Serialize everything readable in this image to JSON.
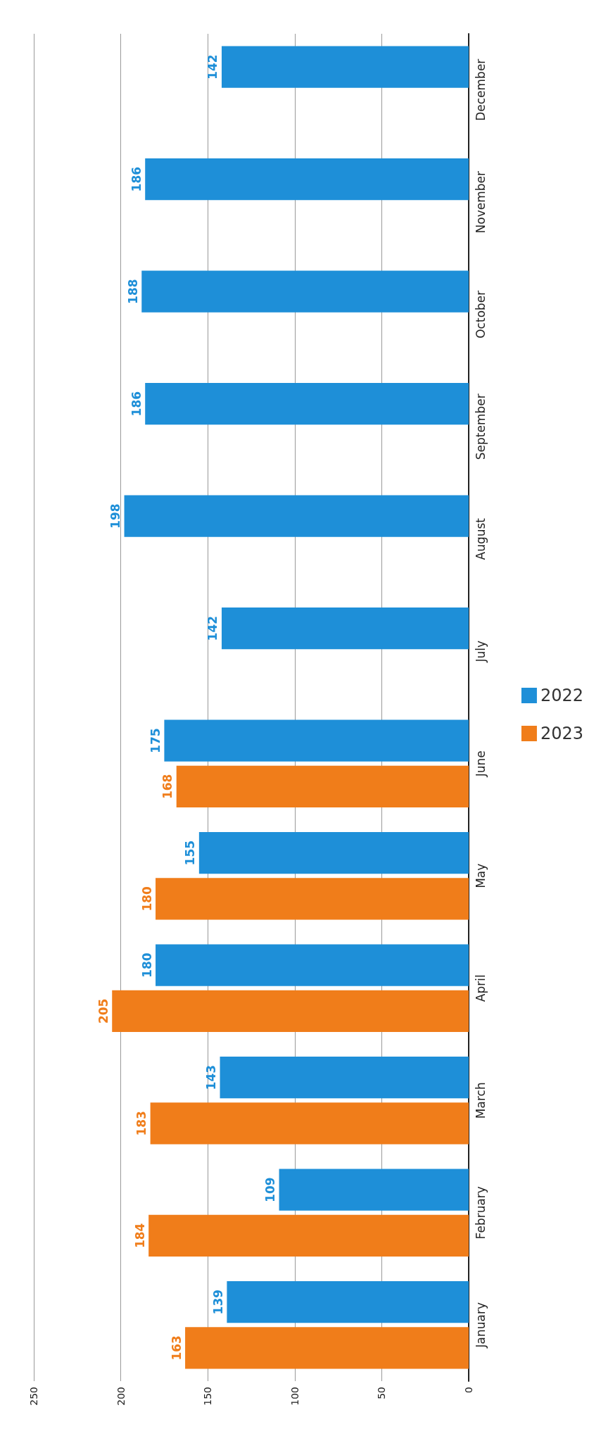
{
  "chart_data": {
    "type": "bar",
    "orientation": "horizontal",
    "categories": [
      "December",
      "November",
      "October",
      "September",
      "August",
      "July",
      "June",
      "May",
      "April",
      "March",
      "February",
      "January"
    ],
    "series": [
      {
        "name": "2022",
        "color": "#1e8fd8",
        "values": [
          142,
          186,
          188,
          186,
          198,
          142,
          175,
          155,
          180,
          143,
          109,
          139
        ]
      },
      {
        "name": "2023",
        "color": "#f07d1a",
        "values": [
          null,
          null,
          null,
          null,
          null,
          null,
          168,
          180,
          205,
          183,
          184,
          163
        ]
      }
    ],
    "xlim": [
      250,
      0
    ],
    "xticks": [
      0,
      50,
      100,
      150,
      200,
      250
    ],
    "grid": "x",
    "legend": "right",
    "data_labels": true
  }
}
